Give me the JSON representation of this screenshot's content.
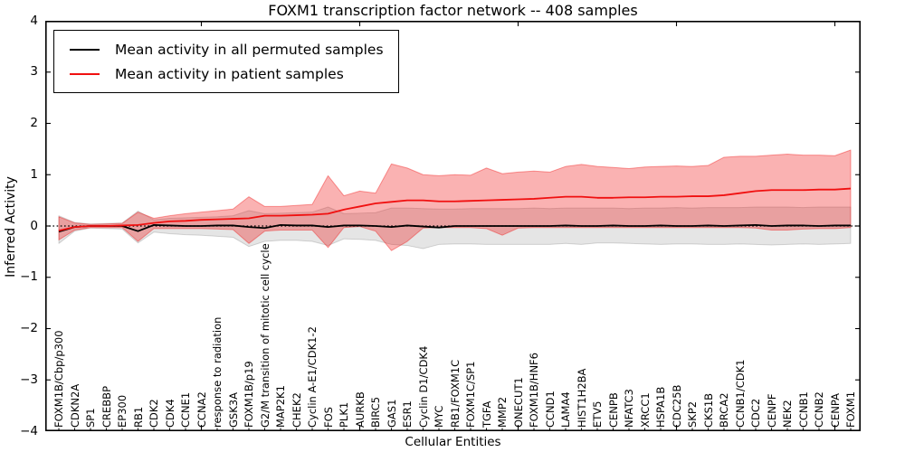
{
  "chart_data": {
    "type": "line",
    "title": "FOXM1 transcription factor network -- 408 samples",
    "xlabel": "Cellular Entities",
    "ylabel": "Inferred Activity",
    "ylim": [
      -4,
      4
    ],
    "yticks": [
      4,
      3,
      2,
      1,
      0,
      -1,
      -2,
      -3,
      -4
    ],
    "x_major_tick_indices": [
      9,
      19,
      29,
      39,
      49
    ],
    "grid": false,
    "zero_line": "dotted",
    "legend_position": "upper left",
    "categories": [
      "FOXM1B/Cbp/p300",
      "CDKN2A",
      "SP1",
      "CREBBP",
      "EP300",
      "RB1",
      "CDK2",
      "CDK4",
      "CCNE1",
      "CCNA2",
      "response to radiation",
      "GSK3A",
      "FOXM1B/p19",
      "G2/M transition of mitotic cell cycle",
      "MAP2K1",
      "CHEK2",
      "Cyclin A-E1/CDK1-2",
      "FOS",
      "PLK1",
      "AURKB",
      "BIRC5",
      "GAS1",
      "ESR1",
      "Cyclin D1/CDK4",
      "MYC",
      "RB1/FOXM1C",
      "FOXM1C/SP1",
      "TGFA",
      "MMP2",
      "ONECUT1",
      "FOXM1B/HNF6",
      "CCND1",
      "LAMA4",
      "HIST1H2BA",
      "ETV5",
      "CENPB",
      "NFATC3",
      "XRCC1",
      "HSPA1B",
      "CDC25B",
      "SKP2",
      "CKS1B",
      "BRCA2",
      "CCNB1/CDK1",
      "CDC2",
      "CENPF",
      "NEK2",
      "CCNB1",
      "CCNB2",
      "CENPA",
      "FOXM1"
    ],
    "series": [
      {
        "name": "Mean activity in all permuted samples",
        "color": "#000000",
        "band_color": "rgba(0,0,0,0.10)",
        "band_edge": "rgba(0,0,0,0.15)",
        "values": [
          -0.11,
          -0.02,
          0,
          0,
          0,
          -0.1,
          0.02,
          0.01,
          0,
          0,
          0.01,
          0.01,
          -0.02,
          -0.04,
          0.02,
          0.01,
          0.01,
          -0.02,
          0.01,
          0.01,
          0,
          -0.02,
          0.01,
          -0.01,
          -0.03,
          0,
          0,
          0,
          0,
          0,
          0,
          0,
          0.01,
          0,
          0,
          0.01,
          0,
          0,
          0.01,
          0,
          0,
          0.01,
          0,
          0.01,
          0.02,
          0,
          0.01,
          0.01,
          0,
          0.01,
          0.01
        ],
        "band_low": [
          -0.34,
          -0.1,
          -0.04,
          -0.05,
          -0.06,
          -0.33,
          -0.12,
          -0.15,
          -0.17,
          -0.18,
          -0.2,
          -0.22,
          -0.4,
          -0.3,
          -0.28,
          -0.28,
          -0.3,
          -0.38,
          -0.25,
          -0.26,
          -0.28,
          -0.36,
          -0.38,
          -0.44,
          -0.36,
          -0.35,
          -0.35,
          -0.36,
          -0.36,
          -0.36,
          -0.36,
          -0.36,
          -0.34,
          -0.36,
          -0.33,
          -0.33,
          -0.34,
          -0.35,
          -0.36,
          -0.35,
          -0.35,
          -0.36,
          -0.36,
          -0.35,
          -0.36,
          -0.37,
          -0.36,
          -0.35,
          -0.36,
          -0.35,
          -0.34
        ],
        "band_high": [
          0.2,
          0.07,
          0.04,
          0.05,
          0.06,
          0.29,
          0.12,
          0.15,
          0.16,
          0.17,
          0.18,
          0.2,
          0.3,
          0.24,
          0.25,
          0.26,
          0.27,
          0.37,
          0.24,
          0.25,
          0.26,
          0.35,
          0.35,
          0.34,
          0.33,
          0.33,
          0.34,
          0.34,
          0.34,
          0.34,
          0.35,
          0.34,
          0.35,
          0.35,
          0.35,
          0.35,
          0.34,
          0.35,
          0.35,
          0.36,
          0.35,
          0.36,
          0.36,
          0.36,
          0.37,
          0.37,
          0.37,
          0.36,
          0.37,
          0.37,
          0.37
        ]
      },
      {
        "name": "Mean activity in patient samples",
        "color": "#f01010",
        "band_color": "rgba(240,16,16,0.32)",
        "band_edge": "rgba(240,16,16,0.40)",
        "values": [
          -0.09,
          -0.02,
          0,
          0,
          0.01,
          0.02,
          0.06,
          0.09,
          0.1,
          0.12,
          0.13,
          0.14,
          0.15,
          0.2,
          0.2,
          0.21,
          0.22,
          0.24,
          0.32,
          0.38,
          0.44,
          0.47,
          0.5,
          0.5,
          0.48,
          0.48,
          0.49,
          0.5,
          0.51,
          0.52,
          0.53,
          0.55,
          0.57,
          0.57,
          0.55,
          0.55,
          0.56,
          0.56,
          0.57,
          0.57,
          0.58,
          0.58,
          0.6,
          0.64,
          0.68,
          0.7,
          0.7,
          0.7,
          0.71,
          0.71,
          0.73
        ],
        "band_low": [
          -0.27,
          -0.08,
          -0.03,
          -0.03,
          -0.03,
          -0.3,
          -0.05,
          -0.05,
          -0.05,
          -0.05,
          -0.06,
          -0.07,
          -0.34,
          -0.1,
          -0.08,
          -0.08,
          -0.08,
          -0.42,
          -0.03,
          -0.01,
          -0.1,
          -0.48,
          -0.3,
          -0.04,
          -0.03,
          -0.03,
          -0.03,
          -0.05,
          -0.18,
          -0.04,
          -0.03,
          -0.03,
          -0.03,
          -0.03,
          -0.03,
          -0.03,
          -0.03,
          -0.03,
          -0.03,
          -0.03,
          -0.03,
          -0.03,
          -0.03,
          -0.03,
          -0.04,
          -0.08,
          -0.08,
          -0.06,
          -0.05,
          -0.05,
          -0.03
        ],
        "band_high": [
          0.18,
          0.06,
          0.03,
          0.04,
          0.05,
          0.27,
          0.15,
          0.2,
          0.24,
          0.27,
          0.3,
          0.33,
          0.57,
          0.38,
          0.38,
          0.4,
          0.42,
          0.98,
          0.59,
          0.68,
          0.64,
          1.21,
          1.13,
          1.0,
          0.98,
          1.0,
          0.99,
          1.13,
          1.02,
          1.05,
          1.07,
          1.05,
          1.16,
          1.2,
          1.16,
          1.14,
          1.12,
          1.15,
          1.16,
          1.17,
          1.16,
          1.18,
          1.34,
          1.36,
          1.36,
          1.38,
          1.4,
          1.38,
          1.38,
          1.37,
          1.48
        ]
      }
    ]
  },
  "legend": {
    "items": [
      {
        "label": "Mean activity in all permuted samples",
        "color": "#000000"
      },
      {
        "label": "Mean activity in patient samples",
        "color": "#f01010"
      }
    ]
  },
  "colors": {
    "patient_line": "#f01010",
    "permuted_line": "#000000",
    "patient_band": "rgba(240,16,16,0.32)",
    "permuted_band": "rgba(0,0,0,0.10)",
    "background": "#ffffff"
  }
}
